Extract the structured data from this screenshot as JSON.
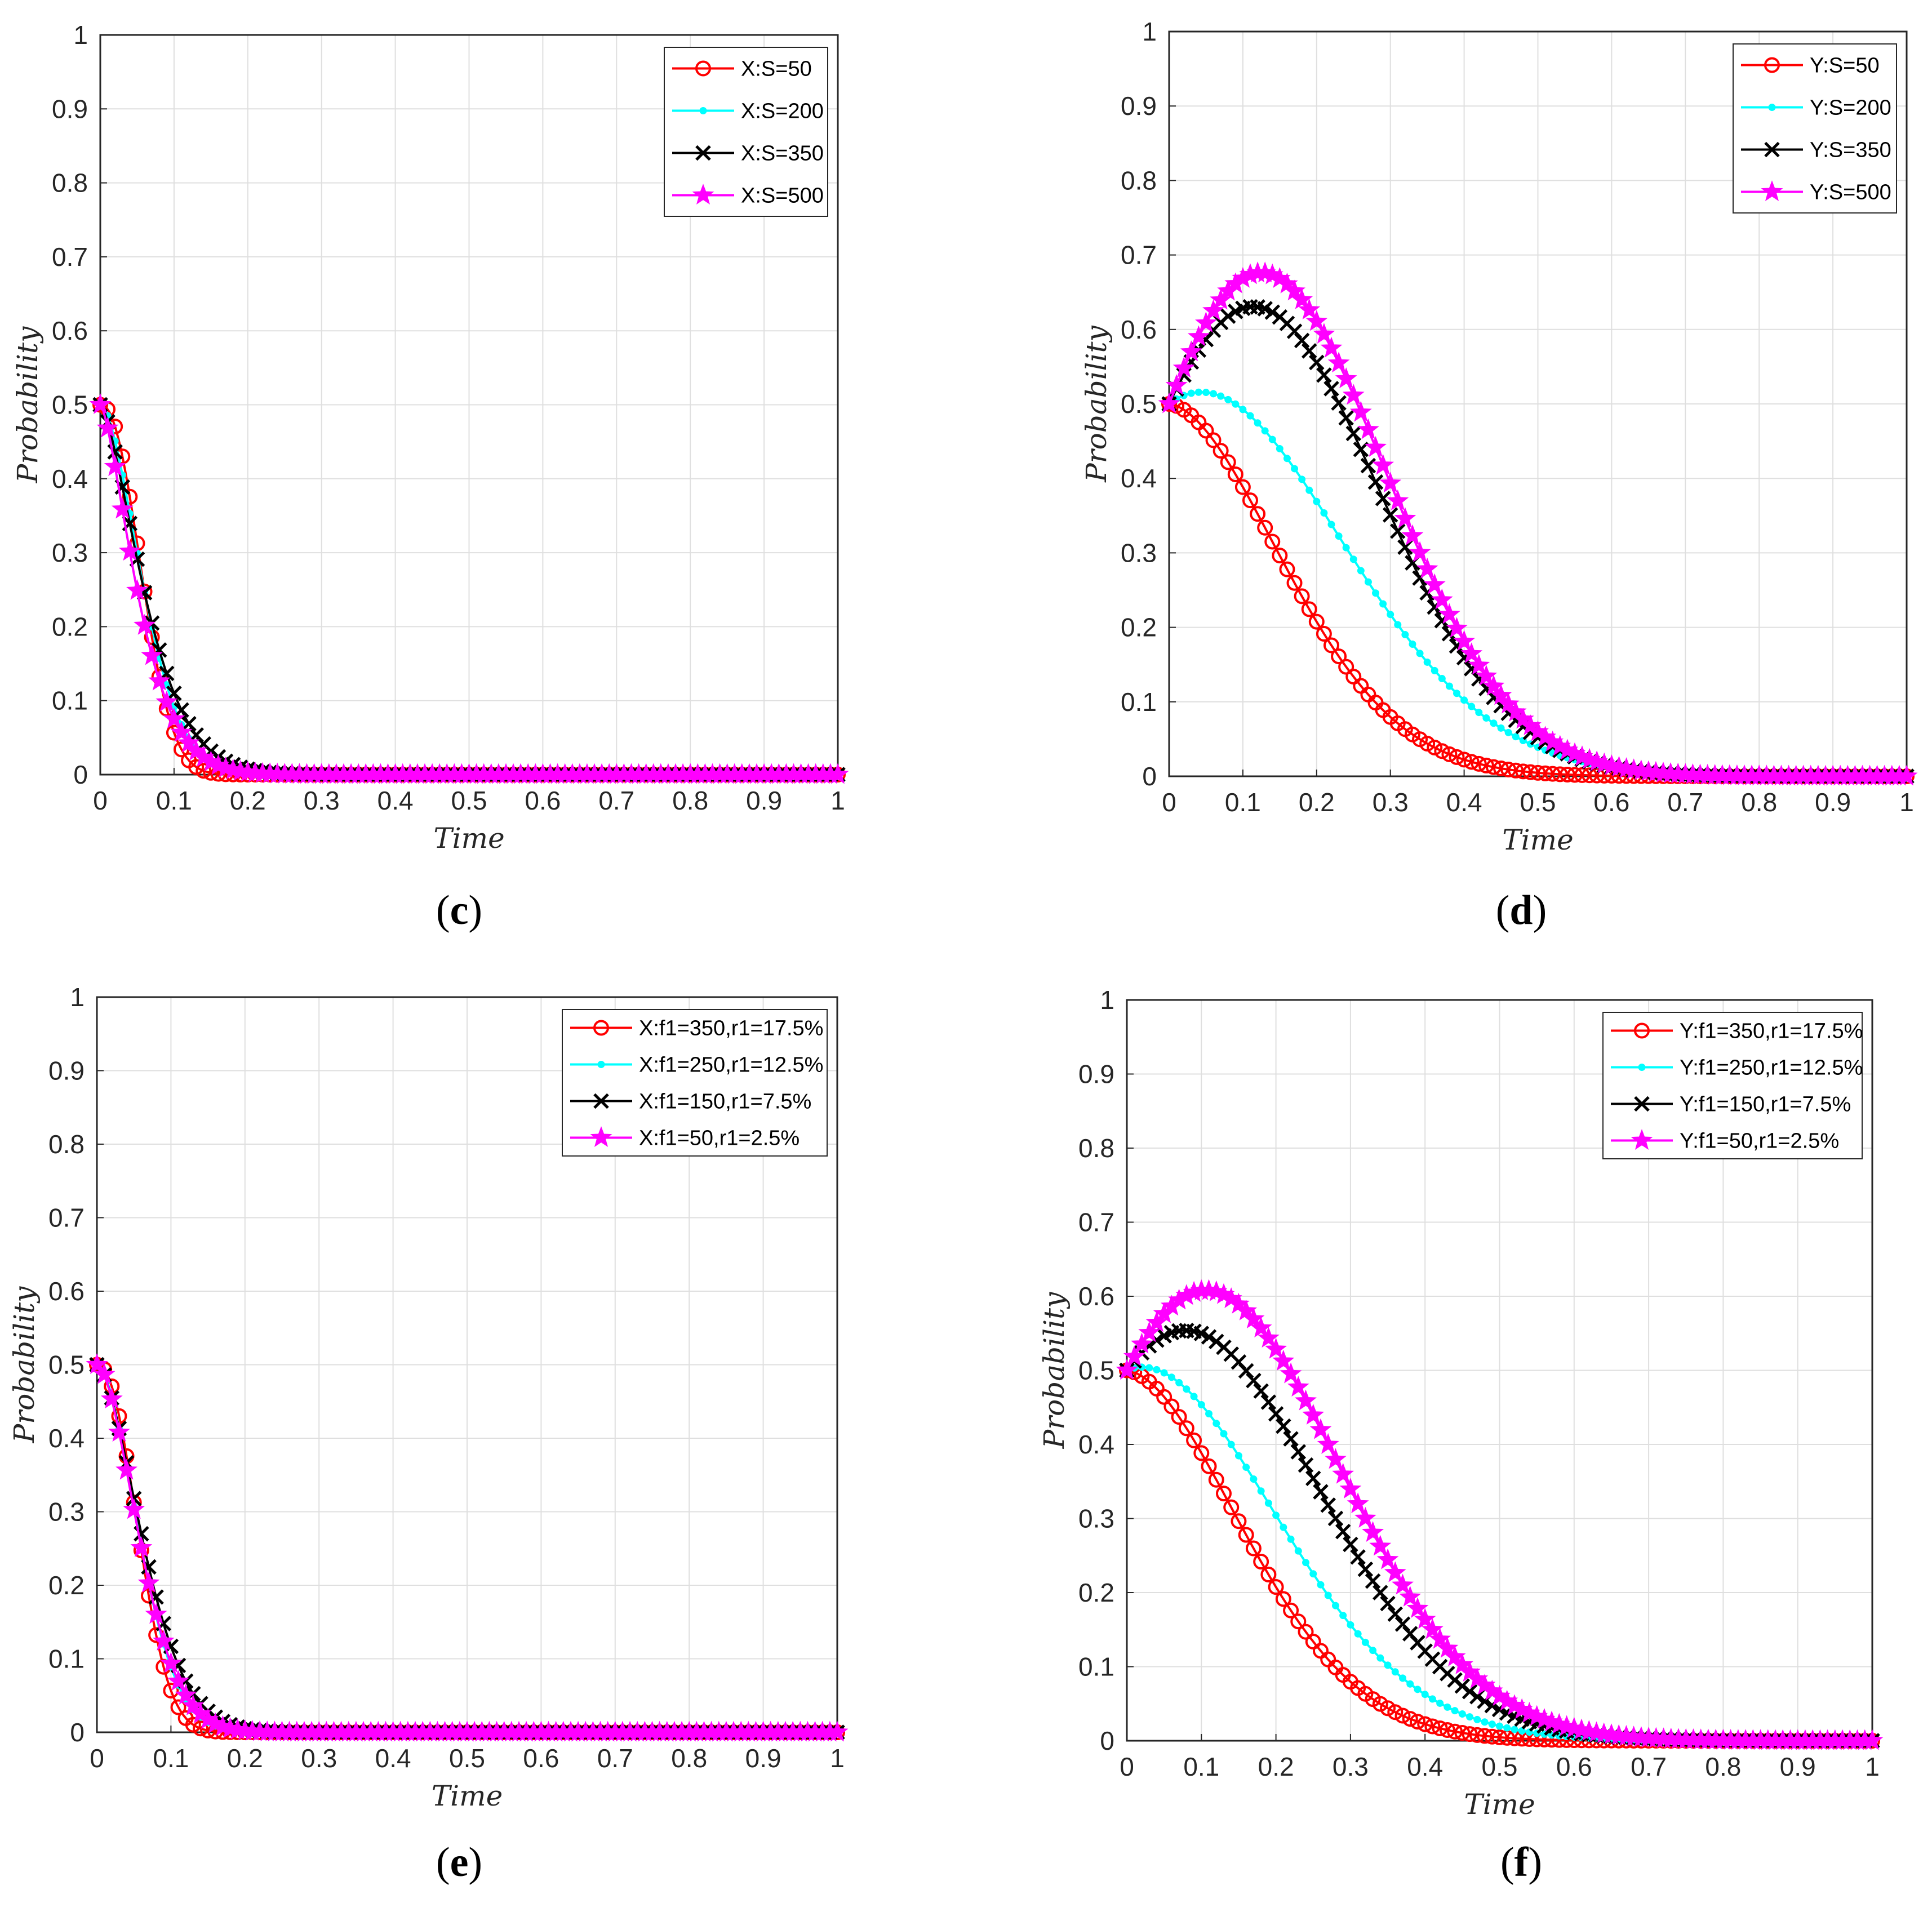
{
  "figure": {
    "common": {
      "xlabel": "Time",
      "ylabel": "Probability",
      "xticks": [
        "0",
        "0.1",
        "0.2",
        "0.3",
        "0.4",
        "0.5",
        "0.6",
        "0.7",
        "0.8",
        "0.9",
        "1"
      ],
      "yticks": [
        "0",
        "0.1",
        "0.2",
        "0.3",
        "0.4",
        "0.5",
        "0.6",
        "0.7",
        "0.8",
        "0.9",
        "1"
      ],
      "colors": {
        "red": "#ff0000",
        "cyan": "#00ffff",
        "black": "#000000",
        "magenta": "#ff00ff"
      }
    }
  },
  "chart_data": [
    {
      "panel": "c",
      "caption": "(c)",
      "caption_letter": "c",
      "type": "line",
      "xlabel": "Time",
      "ylabel": "Probability",
      "xlim": [
        0,
        1
      ],
      "ylim": [
        0,
        1
      ],
      "grid": true,
      "legend_position": "top-right",
      "series": [
        {
          "name": "X:S=50",
          "color": "#ff0000",
          "marker": "circle",
          "curve": "decay",
          "params": {
            "y0": 0.5,
            "a": 0.15,
            "b": 0.07,
            "k": 2.2,
            "mu": 0
          }
        },
        {
          "name": "X:S=200",
          "color": "#00ffff",
          "marker": "dot",
          "curve": "decay",
          "params": {
            "y0": 0.5,
            "a": 0.5,
            "b": 0.072,
            "k": 1.7,
            "mu": 0
          }
        },
        {
          "name": "X:S=350",
          "color": "#000000",
          "marker": "x",
          "curve": "decay",
          "params": {
            "y0": 0.5,
            "a": 1.0,
            "b": 0.072,
            "k": 1.45,
            "mu": 0
          }
        },
        {
          "name": "X:S=500",
          "color": "#ff00ff",
          "marker": "star",
          "curve": "decay",
          "params": {
            "y0": 0.5,
            "a": 1.6,
            "b": 0.06,
            "k": 1.4,
            "mu": 0
          }
        }
      ]
    },
    {
      "panel": "d",
      "caption": "(d)",
      "caption_letter": "d",
      "type": "line",
      "xlabel": "Time",
      "ylabel": "Probability",
      "xlim": [
        0,
        1
      ],
      "ylim": [
        0,
        1
      ],
      "grid": true,
      "legend_position": "top-right",
      "series": [
        {
          "name": "Y:S=50",
          "color": "#ff0000",
          "marker": "circle",
          "curve": "hump",
          "params": {
            "y0": 0.5,
            "a": 0.0,
            "b": 0.22,
            "k": 1.85,
            "mu": 0.2
          }
        },
        {
          "name": "Y:S=200",
          "color": "#00ffff",
          "marker": "dot",
          "curve": "hump",
          "params": {
            "y0": 0.5,
            "a": 1.75,
            "b": 0.27,
            "k": 1.85,
            "mu": 0.2
          }
        },
        {
          "name": "Y:S=350",
          "color": "#000000",
          "marker": "x",
          "curve": "hump",
          "params": {
            "y0": 0.5,
            "a": 4.3,
            "b": 0.28,
            "k": 2.1,
            "mu": 0.2
          }
        },
        {
          "name": "Y:S=500",
          "color": "#ff00ff",
          "marker": "star",
          "curve": "hump",
          "params": {
            "y0": 0.5,
            "a": 5.2,
            "b": 0.28,
            "k": 2.1,
            "mu": 0.2
          }
        }
      ]
    },
    {
      "panel": "e",
      "caption": "(e)",
      "caption_letter": "e",
      "type": "line",
      "xlabel": "Time",
      "ylabel": "Probability",
      "xlim": [
        0,
        1
      ],
      "ylim": [
        0,
        1
      ],
      "grid": true,
      "legend_position": "top-right",
      "series": [
        {
          "name": "X:f1=350,r1=17.5%",
          "color": "#ff0000",
          "marker": "circle",
          "curve": "decay",
          "params": {
            "y0": 0.5,
            "a": 0.15,
            "b": 0.07,
            "k": 2.2,
            "mu": 0
          }
        },
        {
          "name": "X:f1=250,r1=12.5%",
          "color": "#00ffff",
          "marker": "dot",
          "curve": "decay",
          "params": {
            "y0": 0.5,
            "a": 0.35,
            "b": 0.073,
            "k": 1.8,
            "mu": 0
          }
        },
        {
          "name": "X:f1=150,r1=7.5%",
          "color": "#000000",
          "marker": "x",
          "curve": "decay",
          "params": {
            "y0": 0.5,
            "a": 0.55,
            "b": 0.078,
            "k": 1.65,
            "mu": 0
          }
        },
        {
          "name": "X:f1=50,r1=2.5%",
          "color": "#ff00ff",
          "marker": "star",
          "curve": "decay",
          "params": {
            "y0": 0.5,
            "a": 0.75,
            "b": 0.072,
            "k": 1.7,
            "mu": 0
          }
        }
      ]
    },
    {
      "panel": "f",
      "caption": "(f)",
      "caption_letter": "f",
      "type": "line",
      "xlabel": "Time",
      "ylabel": "Probability",
      "xlim": [
        0,
        1
      ],
      "ylim": [
        0,
        1
      ],
      "grid": true,
      "legend_position": "top-right",
      "series": [
        {
          "name": "Y:f1=350,r1=17.5%",
          "color": "#ff0000",
          "marker": "circle",
          "curve": "hump",
          "params": {
            "y0": 0.5,
            "a": 0.0,
            "b": 0.22,
            "k": 1.85,
            "mu": 0.2
          }
        },
        {
          "name": "Y:f1=250,r1=12.5%",
          "color": "#00ffff",
          "marker": "dot",
          "curve": "hump",
          "params": {
            "y0": 0.5,
            "a": 1.1,
            "b": 0.25,
            "k": 1.85,
            "mu": 0.2
          }
        },
        {
          "name": "Y:f1=150,r1=7.5%",
          "color": "#000000",
          "marker": "x",
          "curve": "hump",
          "params": {
            "y0": 0.5,
            "a": 2.9,
            "b": 0.27,
            "k": 1.95,
            "mu": 0.2
          }
        },
        {
          "name": "Y:f1=50,r1=2.5%",
          "color": "#ff00ff",
          "marker": "star",
          "curve": "hump",
          "params": {
            "y0": 0.5,
            "a": 4.0,
            "b": 0.28,
            "k": 2.0,
            "mu": 0.2
          }
        }
      ]
    }
  ]
}
